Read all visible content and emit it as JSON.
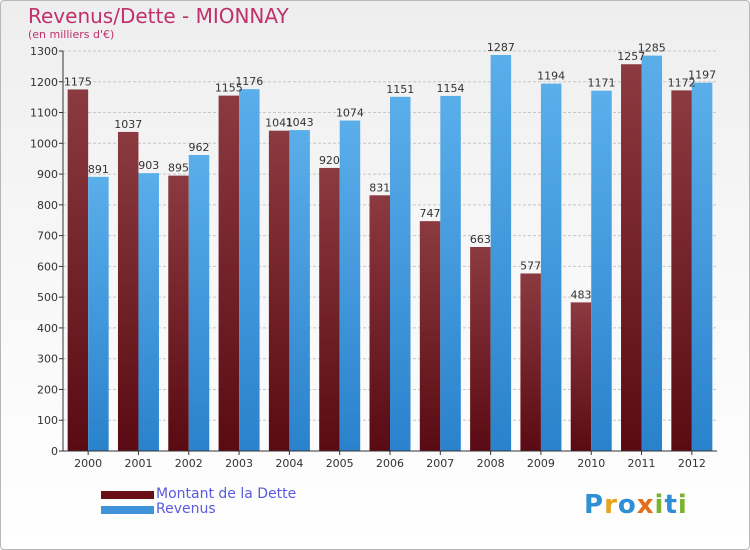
{
  "title": "Revenus/Dette - MIONNAY",
  "subtitle": "(en milliers d'€)",
  "legend": {
    "items": [
      {
        "label": "Montant de la Dette",
        "color": "#6b0f18"
      },
      {
        "label": "Revenus",
        "color": "#3f93d8"
      }
    ]
  },
  "logo": {
    "text": "Proxiti",
    "letters": [
      {
        "char": "P",
        "color": "#2f8fd4"
      },
      {
        "char": "r",
        "color": "#e8a21f"
      },
      {
        "char": "o",
        "color": "#2f8fd4"
      },
      {
        "char": "x",
        "color": "#e36f1c"
      },
      {
        "char": "i",
        "color": "#7ab32e"
      },
      {
        "char": "t",
        "color": "#2f8fd4"
      },
      {
        "char": "i",
        "color": "#7ab32e"
      }
    ]
  },
  "colors": {
    "dette_dark": "#5a0a12",
    "dette_light": "#8b3a40",
    "revenus_dark": "#2a82cc",
    "revenus_light": "#5aaeea",
    "axis": "#333333",
    "grid": "#c8c8c8",
    "label": "#333333"
  },
  "chart_data": {
    "type": "bar",
    "categories": [
      "2000",
      "2001",
      "2002",
      "2003",
      "2004",
      "2005",
      "2006",
      "2007",
      "2008",
      "2009",
      "2010",
      "2011",
      "2012"
    ],
    "series": [
      {
        "name": "Montant de la Dette",
        "values": [
          1175,
          1037,
          895,
          1155,
          1041,
          920,
          831,
          747,
          663,
          577,
          483,
          1257,
          1172
        ]
      },
      {
        "name": "Revenus",
        "values": [
          891,
          903,
          962,
          1176,
          1043,
          1074,
          1151,
          1154,
          1287,
          1194,
          1171,
          1285,
          1197
        ]
      }
    ],
    "ylim": [
      0,
      1300
    ],
    "yticks": [
      0,
      100,
      200,
      300,
      400,
      500,
      600,
      700,
      800,
      900,
      1000,
      1100,
      1200,
      1300
    ],
    "grid": true
  }
}
